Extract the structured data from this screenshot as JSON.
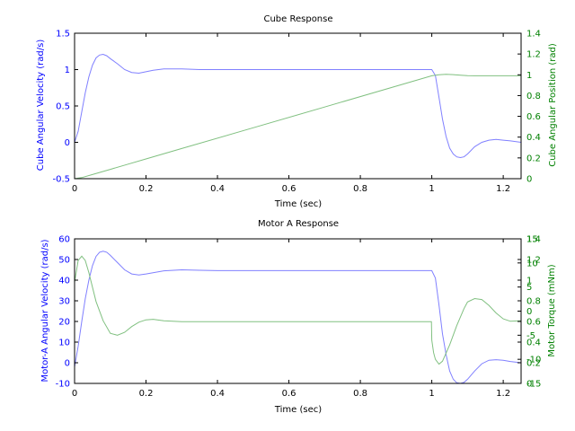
{
  "colors": {
    "series1": "#8080ff",
    "series2": "#80c080",
    "axis_left": "#0000ff",
    "axis_right": "#008000",
    "frame": "#000000"
  },
  "chart_data": [
    {
      "type": "line",
      "title": "Cube Response",
      "xlabel": "Time (sec)",
      "ylabel_left": "Cube Angular Velocity (rad/s)",
      "ylabel_right": "Cube Angular Position (rad)",
      "xlim": [
        0,
        1.25
      ],
      "ylim_left": [
        -0.5,
        1.5
      ],
      "ylim_right": [
        0,
        1.4
      ],
      "xticks": [
        "0",
        "0.2",
        "0.4",
        "0.6",
        "0.8",
        "1",
        "1.2"
      ],
      "yticks_left": [
        "-0.5",
        "0",
        "0.5",
        "1",
        "1.5"
      ],
      "yticks_right": [
        "0",
        "0.2",
        "0.4",
        "0.6",
        "0.8",
        "1",
        "1.2",
        "1.4"
      ],
      "grid": false,
      "series": [
        {
          "axis": "left",
          "color": "#8080ff",
          "x": [
            0,
            0.01,
            0.02,
            0.03,
            0.04,
            0.05,
            0.06,
            0.07,
            0.08,
            0.09,
            0.1,
            0.12,
            0.14,
            0.16,
            0.18,
            0.2,
            0.22,
            0.25,
            0.3,
            0.35,
            0.4,
            0.6,
            0.8,
            1.0,
            1.01,
            1.02,
            1.03,
            1.04,
            1.05,
            1.06,
            1.07,
            1.08,
            1.09,
            1.1,
            1.12,
            1.14,
            1.16,
            1.18,
            1.2,
            1.22,
            1.25
          ],
          "y": [
            0,
            0.15,
            0.42,
            0.68,
            0.9,
            1.06,
            1.16,
            1.2,
            1.21,
            1.19,
            1.15,
            1.08,
            1.0,
            0.96,
            0.95,
            0.97,
            0.99,
            1.01,
            1.01,
            1.0,
            1.0,
            1.0,
            1.0,
            1.0,
            0.92,
            0.62,
            0.32,
            0.08,
            -0.08,
            -0.16,
            -0.2,
            -0.21,
            -0.2,
            -0.16,
            -0.06,
            0.0,
            0.03,
            0.04,
            0.03,
            0.02,
            0.0
          ]
        },
        {
          "axis": "right",
          "color": "#80c080",
          "x": [
            0,
            0.02,
            0.05,
            0.1,
            0.15,
            0.2,
            0.3,
            0.5,
            0.7,
            0.9,
            1.0,
            1.02,
            1.04,
            1.06,
            1.08,
            1.1,
            1.12,
            1.15,
            1.2,
            1.25
          ],
          "y": [
            0,
            0.01,
            0.04,
            0.09,
            0.14,
            0.19,
            0.29,
            0.49,
            0.69,
            0.89,
            0.99,
            1.0,
            1.005,
            1.002,
            0.996,
            0.991,
            0.99,
            0.99,
            0.99,
            0.99
          ]
        }
      ]
    },
    {
      "type": "line",
      "title": "Motor A Response",
      "xlabel": "Time (sec)",
      "ylabel_left": "Motor-A Angular Velocity (rad/s)",
      "ylabel_right": "Motor Torque (mNm)",
      "xlim": [
        0,
        1.25
      ],
      "ylim_left": [
        -10,
        60
      ],
      "ylim_right": [
        -15,
        15
      ],
      "xticks": [
        "0",
        "0.2",
        "0.4",
        "0.6",
        "0.8",
        "1",
        "1.2"
      ],
      "yticks_left": [
        "-10",
        "0",
        "10",
        "20",
        "30",
        "40",
        "50",
        "60"
      ],
      "yticks_right": [
        "-15",
        "-10",
        "-5",
        "0",
        "5",
        "10",
        "15"
      ],
      "yticks_right_extra": [
        "0",
        "0.2",
        "0.4",
        "0.6",
        "0.8",
        "1",
        "1.2",
        "1.4"
      ],
      "grid": false,
      "series": [
        {
          "axis": "left",
          "color": "#8080ff",
          "x": [
            0,
            0.01,
            0.02,
            0.03,
            0.04,
            0.05,
            0.06,
            0.07,
            0.08,
            0.09,
            0.1,
            0.12,
            0.14,
            0.16,
            0.18,
            0.2,
            0.25,
            0.3,
            0.35,
            0.4,
            0.6,
            0.8,
            1.0,
            1.01,
            1.02,
            1.03,
            1.04,
            1.05,
            1.06,
            1.07,
            1.08,
            1.09,
            1.1,
            1.12,
            1.14,
            1.16,
            1.18,
            1.2,
            1.22,
            1.25
          ],
          "y": [
            -2,
            8,
            20,
            31,
            40,
            47,
            51.5,
            53.5,
            54,
            53.5,
            52,
            48.5,
            45,
            43,
            42.5,
            43,
            44.5,
            45,
            44.8,
            44.6,
            44.6,
            44.6,
            44.6,
            41,
            28,
            14,
            4,
            -4,
            -8,
            -9.7,
            -10,
            -9.5,
            -8,
            -4,
            -0.5,
            1.2,
            1.5,
            1.2,
            0.6,
            0
          ]
        },
        {
          "axis": "right",
          "color": "#80c080",
          "x": [
            0,
            0.01,
            0.02,
            0.03,
            0.04,
            0.05,
            0.06,
            0.08,
            0.1,
            0.12,
            0.14,
            0.16,
            0.18,
            0.2,
            0.22,
            0.25,
            0.3,
            0.4,
            0.6,
            0.8,
            0.999,
            1.0,
            1.005,
            1.01,
            1.02,
            1.03,
            1.05,
            1.07,
            1.09,
            1.1,
            1.12,
            1.14,
            1.16,
            1.18,
            1.2,
            1.22,
            1.25
          ],
          "y": [
            6,
            10.5,
            11.4,
            10.5,
            8,
            5,
            2,
            -2,
            -4.6,
            -5,
            -4.4,
            -3.2,
            -2.3,
            -1.8,
            -1.7,
            -2,
            -2.2,
            -2.2,
            -2.2,
            -2.2,
            -2.2,
            -6,
            -8.6,
            -10,
            -11,
            -10.4,
            -7,
            -3,
            0.5,
            1.9,
            2.6,
            2.4,
            1.2,
            -0.4,
            -1.6,
            -2.1,
            -2
          ]
        }
      ]
    }
  ]
}
